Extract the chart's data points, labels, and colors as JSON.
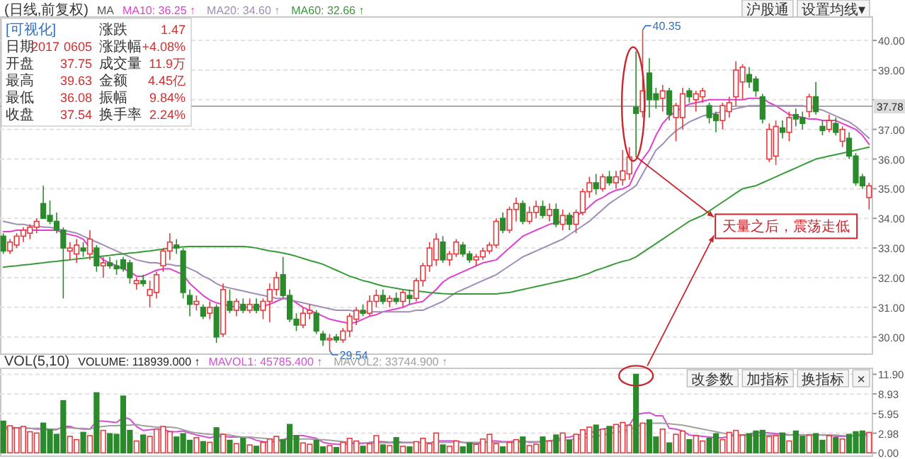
{
  "chart_data": [
    {
      "type": "candlestick",
      "title": "(日线,前复权)",
      "legend_title": "MA",
      "legend": "top",
      "grid": "y",
      "tick_labels": "y",
      "categories": [
        null,
        null,
        null,
        null,
        null,
        null,
        null,
        null,
        null,
        null,
        null,
        null,
        null,
        null,
        null,
        null,
        null,
        null,
        null,
        null,
        null,
        null,
        null,
        null,
        null,
        null,
        null,
        null,
        null,
        null,
        null,
        null,
        null,
        null,
        null,
        null,
        null,
        null,
        null,
        null,
        null,
        null,
        null,
        null,
        null,
        null,
        null,
        null,
        null,
        null,
        null,
        null,
        null,
        null,
        null,
        null,
        null,
        null,
        null,
        null,
        null,
        null,
        null,
        null,
        null,
        null,
        null,
        null,
        null,
        null,
        null,
        null,
        null,
        null,
        null,
        null,
        null,
        null,
        null,
        null,
        null,
        null,
        null,
        null,
        null,
        null,
        null,
        null,
        null,
        null,
        null,
        null,
        null,
        null,
        null,
        null,
        null,
        null,
        null,
        null,
        null,
        null,
        null,
        null,
        null,
        null,
        null,
        null,
        null,
        null,
        null,
        null,
        null,
        null,
        null,
        null,
        null,
        null,
        null,
        null,
        null,
        null,
        null,
        null,
        null,
        null,
        null,
        null,
        null,
        null,
        null
      ],
      "ylim": [
        29.42,
        40.79
      ],
      "yticks": [
        {
          "value": 30,
          "label": "30.00"
        },
        {
          "value": 31,
          "label": "31.00"
        },
        {
          "value": 32,
          "label": "32.00"
        },
        {
          "value": 33,
          "label": "33.00"
        },
        {
          "value": 34,
          "label": "34.00"
        },
        {
          "value": 35,
          "label": "35.00"
        },
        {
          "value": 36,
          "label": "36.00"
        },
        {
          "value": 37,
          "label": "37.00"
        },
        {
          "value": 38,
          "label": null
        },
        {
          "value": 39,
          "label": "39.00"
        },
        {
          "value": 40,
          "label": "40.00"
        }
      ],
      "ref_lines": [
        {
          "axis": "y",
          "value": 37.78,
          "label": "37.78",
          "color": "#8c8c8c"
        }
      ],
      "annotations": [
        "天量之后，震荡走低",
        "40.35",
        "29.54",
        "沪股通",
        "设置均线▾"
      ],
      "ohlc": [
        [
          33.4,
          33.5,
          32.8,
          32.9
        ],
        [
          32.9,
          33.3,
          32.8,
          33.2
        ],
        [
          33.1,
          33.5,
          33.0,
          33.4
        ],
        [
          33.4,
          33.7,
          33.2,
          33.6
        ],
        [
          33.5,
          33.8,
          33.3,
          33.7
        ],
        [
          33.7,
          34.0,
          33.5,
          33.9
        ],
        [
          34.5,
          35.1,
          34.0,
          34.0
        ],
        [
          34.1,
          34.6,
          33.8,
          33.9
        ],
        [
          33.9,
          34.2,
          33.5,
          33.6
        ],
        [
          33.6,
          33.7,
          31.3,
          33.0
        ],
        [
          32.9,
          33.2,
          32.6,
          33.0
        ],
        [
          32.8,
          33.3,
          32.5,
          33.1
        ],
        [
          33.0,
          33.2,
          32.7,
          32.9
        ],
        [
          32.8,
          33.6,
          32.6,
          33.3
        ],
        [
          33.0,
          33.1,
          32.2,
          32.4
        ],
        [
          32.4,
          32.7,
          32.0,
          32.5
        ],
        [
          32.5,
          32.7,
          32.3,
          32.4
        ],
        [
          32.4,
          32.6,
          32.1,
          32.3
        ],
        [
          32.6,
          32.7,
          32.2,
          32.3
        ],
        [
          32.5,
          32.6,
          31.8,
          32.0
        ],
        [
          31.8,
          32.0,
          31.6,
          31.9
        ],
        [
          31.9,
          32.1,
          31.7,
          31.8
        ],
        [
          31.4,
          31.9,
          31.0,
          31.6
        ],
        [
          31.5,
          32.2,
          31.3,
          32.1
        ],
        [
          32.4,
          33.0,
          32.2,
          32.9
        ],
        [
          32.9,
          33.5,
          32.6,
          33.2
        ],
        [
          33.1,
          33.3,
          32.8,
          33.0
        ],
        [
          32.9,
          33.0,
          31.3,
          31.5
        ],
        [
          31.4,
          31.6,
          30.7,
          31.1
        ],
        [
          31.1,
          31.4,
          30.9,
          31.2
        ],
        [
          31.0,
          31.1,
          30.6,
          30.7
        ],
        [
          30.8,
          31.2,
          30.6,
          31.0
        ],
        [
          31.0,
          31.1,
          29.8,
          30.0
        ],
        [
          30.1,
          31.8,
          30.0,
          31.6
        ],
        [
          31.2,
          31.6,
          30.8,
          30.9
        ],
        [
          30.9,
          31.3,
          30.7,
          31.2
        ],
        [
          31.1,
          31.3,
          30.8,
          30.9
        ],
        [
          30.9,
          31.3,
          30.8,
          31.1
        ],
        [
          31.1,
          31.3,
          30.8,
          30.9
        ],
        [
          30.9,
          31.3,
          30.6,
          31.2
        ],
        [
          31.2,
          31.8,
          30.5,
          31.6
        ],
        [
          31.6,
          32.2,
          31.4,
          32.0
        ],
        [
          32.1,
          32.7,
          31.3,
          31.4
        ],
        [
          31.4,
          31.6,
          30.5,
          30.6
        ],
        [
          30.6,
          30.8,
          30.2,
          30.4
        ],
        [
          30.4,
          31.0,
          30.3,
          30.8
        ],
        [
          30.8,
          31.1,
          30.6,
          30.9
        ],
        [
          30.8,
          30.9,
          30.1,
          30.2
        ],
        [
          30.1,
          30.2,
          29.7,
          29.9
        ],
        [
          29.9,
          30.1,
          29.54,
          29.95
        ],
        [
          30.0,
          30.1,
          29.8,
          29.9
        ],
        [
          29.9,
          30.3,
          29.8,
          30.2
        ],
        [
          30.2,
          30.8,
          30.0,
          30.7
        ],
        [
          30.6,
          31.0,
          30.4,
          30.9
        ],
        [
          30.9,
          31.1,
          30.7,
          30.8
        ],
        [
          30.8,
          31.4,
          30.7,
          31.2
        ],
        [
          31.2,
          31.6,
          31.0,
          31.4
        ],
        [
          31.4,
          31.6,
          31.1,
          31.2
        ],
        [
          31.2,
          31.4,
          31.0,
          31.3
        ],
        [
          31.3,
          31.5,
          31.1,
          31.2
        ],
        [
          31.2,
          31.6,
          31.0,
          31.5
        ],
        [
          31.4,
          31.6,
          31.1,
          31.3
        ],
        [
          31.3,
          32.0,
          31.2,
          31.9
        ],
        [
          31.9,
          32.5,
          31.7,
          32.4
        ],
        [
          32.4,
          33.2,
          32.2,
          33.0
        ],
        [
          32.6,
          33.5,
          32.4,
          33.3
        ],
        [
          33.2,
          33.4,
          32.5,
          32.6
        ],
        [
          32.6,
          32.9,
          32.4,
          32.8
        ],
        [
          32.8,
          33.3,
          32.7,
          33.2
        ],
        [
          33.1,
          33.2,
          32.7,
          32.8
        ],
        [
          32.8,
          32.9,
          32.5,
          32.6
        ],
        [
          32.6,
          32.8,
          32.4,
          32.7
        ],
        [
          32.7,
          33.0,
          32.6,
          32.9
        ],
        [
          32.9,
          33.2,
          32.8,
          33.1
        ],
        [
          33.1,
          34.0,
          33.0,
          33.9
        ],
        [
          34.0,
          34.2,
          33.5,
          33.6
        ],
        [
          33.6,
          34.4,
          33.5,
          34.3
        ],
        [
          34.3,
          34.7,
          33.9,
          34.5
        ],
        [
          34.5,
          34.6,
          33.8,
          33.9
        ],
        [
          33.9,
          34.4,
          33.8,
          34.2
        ],
        [
          34.2,
          34.6,
          34.0,
          34.4
        ],
        [
          34.4,
          34.6,
          34.0,
          34.1
        ],
        [
          34.1,
          34.5,
          33.9,
          34.3
        ],
        [
          34.3,
          34.5,
          33.7,
          33.8
        ],
        [
          33.8,
          34.3,
          33.6,
          34.1
        ],
        [
          34.1,
          34.2,
          33.6,
          33.8
        ],
        [
          33.8,
          34.3,
          33.5,
          34.2
        ],
        [
          34.2,
          35.0,
          34.1,
          34.9
        ],
        [
          34.9,
          35.4,
          34.7,
          35.2
        ],
        [
          35.2,
          35.5,
          34.8,
          35.0
        ],
        [
          35.0,
          35.5,
          34.9,
          35.4
        ],
        [
          35.4,
          35.6,
          35.1,
          35.2
        ],
        [
          35.2,
          35.6,
          35.0,
          35.4
        ],
        [
          35.3,
          36.3,
          35.1,
          35.6
        ],
        [
          35.5,
          36.4,
          35.3,
          36.07
        ],
        [
          37.75,
          39.63,
          36.08,
          37.54
        ],
        [
          37.6,
          40.35,
          37.4,
          38.3
        ],
        [
          38.9,
          39.4,
          37.4,
          38.0
        ],
        [
          38.2,
          38.4,
          37.7,
          38.0
        ],
        [
          38.05,
          38.5,
          37.6,
          38.3
        ],
        [
          38.3,
          38.4,
          37.3,
          37.5
        ],
        [
          37.4,
          37.9,
          36.6,
          37.8
        ],
        [
          37.4,
          38.4,
          37.0,
          38.2
        ],
        [
          38.3,
          38.4,
          37.9,
          38.1
        ],
        [
          38.0,
          38.3,
          37.6,
          38.2
        ],
        [
          38.1,
          38.4,
          37.9,
          38.3
        ],
        [
          37.8,
          37.9,
          37.2,
          37.4
        ],
        [
          37.5,
          37.6,
          36.9,
          37.3
        ],
        [
          37.3,
          37.9,
          37.0,
          37.8
        ],
        [
          37.6,
          38.1,
          37.4,
          37.9
        ],
        [
          38.1,
          39.3,
          37.8,
          39.0
        ],
        [
          38.6,
          39.2,
          38.0,
          39.1
        ],
        [
          38.85,
          39.1,
          38.4,
          38.6
        ],
        [
          38.7,
          38.8,
          38.1,
          38.3
        ],
        [
          38.1,
          38.2,
          37.2,
          37.35
        ],
        [
          36.0,
          37.2,
          35.9,
          37.0
        ],
        [
          36.1,
          37.3,
          35.8,
          37.1
        ],
        [
          37.05,
          37.3,
          36.7,
          36.9
        ],
        [
          36.9,
          37.6,
          36.6,
          37.4
        ],
        [
          37.5,
          37.7,
          37.1,
          37.35
        ],
        [
          37.4,
          37.6,
          37.0,
          37.2
        ],
        [
          37.6,
          38.2,
          37.4,
          38.1
        ],
        [
          38.1,
          38.6,
          37.5,
          37.6
        ],
        [
          37.1,
          37.3,
          36.8,
          36.96
        ],
        [
          37.0,
          37.5,
          36.9,
          37.3
        ],
        [
          37.2,
          37.4,
          36.8,
          36.9
        ],
        [
          36.6,
          37.1,
          36.4,
          37.0
        ],
        [
          36.7,
          36.9,
          36.0,
          36.1
        ],
        [
          36.1,
          36.2,
          35.1,
          35.2
        ],
        [
          35.4,
          35.5,
          35.0,
          35.1
        ],
        [
          34.7,
          35.2,
          34.3,
          35.1
        ]
      ],
      "colors": [
        "#2b8a2b",
        "#e8383d",
        "#e8383d",
        "#e8383d",
        "#e8383d",
        "#e8383d",
        "#2b8a2b",
        "#2b8a2b",
        "#2b8a2b",
        "#2b8a2b",
        "#e8383d",
        "#e8383d",
        "#2b8a2b",
        "#e8383d",
        "#2b8a2b",
        "#e8383d",
        "#2b8a2b",
        "#2b8a2b",
        "#2b8a2b",
        "#2b8a2b",
        "#e8383d",
        "#2b8a2b",
        "#e8383d",
        "#e8383d",
        "#e8383d",
        "#e8383d",
        "#2b8a2b",
        "#2b8a2b",
        "#2b8a2b",
        "#e8383d",
        "#2b8a2b",
        "#e8383d",
        "#2b8a2b",
        "#e8383d",
        "#2b8a2b",
        "#e8383d",
        "#2b8a2b",
        "#e8383d",
        "#2b8a2b",
        "#e8383d",
        "#e8383d",
        "#e8383d",
        "#2b8a2b",
        "#2b8a2b",
        "#2b8a2b",
        "#e8383d",
        "#e8383d",
        "#2b8a2b",
        "#2b8a2b",
        "#e8383d",
        "#2b8a2b",
        "#e8383d",
        "#e8383d",
        "#e8383d",
        "#2b8a2b",
        "#e8383d",
        "#e8383d",
        "#2b8a2b",
        "#e8383d",
        "#2b8a2b",
        "#e8383d",
        "#2b8a2b",
        "#e8383d",
        "#e8383d",
        "#e8383d",
        "#e8383d",
        "#2b8a2b",
        "#e8383d",
        "#e8383d",
        "#2b8a2b",
        "#2b8a2b",
        "#e8383d",
        "#e8383d",
        "#e8383d",
        "#e8383d",
        "#2b8a2b",
        "#e8383d",
        "#e8383d",
        "#2b8a2b",
        "#e8383d",
        "#e8383d",
        "#2b8a2b",
        "#e8383d",
        "#2b8a2b",
        "#e8383d",
        "#2b8a2b",
        "#e8383d",
        "#e8383d",
        "#e8383d",
        "#2b8a2b",
        "#e8383d",
        "#2b8a2b",
        "#e8383d",
        "#e8383d",
        "#e8383d",
        "#2b8a2b",
        "#e8383d",
        "#2b8a2b",
        "#2b8a2b",
        "#e8383d",
        "#2b8a2b",
        "#e8383d",
        "#e8383d",
        "#2b8a2b",
        "#e8383d",
        "#e8383d",
        "#2b8a2b",
        "#2b8a2b",
        "#e8383d",
        "#e8383d",
        "#e8383d",
        "#e8383d",
        "#2b8a2b",
        "#2b8a2b",
        "#2b8a2b",
        "#e8383d",
        "#e8383d",
        "#2b8a2b",
        "#e8383d",
        "#2b8a2b",
        "#2b8a2b",
        "#e8383d",
        "#2b8a2b",
        "#2b8a2b",
        "#e8383d",
        "#2b8a2b",
        "#e8383d",
        "#2b8a2b",
        "#2b8a2b",
        "#2b8a2b",
        "#e8383d"
      ],
      "series": [
        {
          "type": "line",
          "name": "MA10: 36.25 ↑",
          "color": "#e040d0",
          "values": [
            33.55,
            33.55,
            33.6,
            33.6,
            33.6,
            33.6,
            33.6,
            33.6,
            33.6,
            33.5,
            33.45,
            33.4,
            33.3,
            33.0,
            32.8,
            32.6,
            32.5,
            32.4,
            32.3,
            32.2,
            32.05,
            32.05,
            32.15,
            32.25,
            32.3,
            32.3,
            32.2,
            32.1,
            31.8,
            31.6,
            31.4,
            31.25,
            31.15,
            31.1,
            31.05,
            31.0,
            31.0,
            31.0,
            31.0,
            31.05,
            31.1,
            31.2,
            31.3,
            31.3,
            31.15,
            31.0,
            30.9,
            30.8,
            30.7,
            30.6,
            30.55,
            30.5,
            30.45,
            30.5,
            30.6,
            30.7,
            30.75,
            30.85,
            30.9,
            30.95,
            31.0,
            31.1,
            31.15,
            31.2,
            31.4,
            31.6,
            31.85,
            32.0,
            32.1,
            32.2,
            32.3,
            32.4,
            32.5,
            32.55,
            32.6,
            32.8,
            33.0,
            33.2,
            33.4,
            33.5,
            33.6,
            33.7,
            33.8,
            33.85,
            33.9,
            34.0,
            34.1,
            34.2,
            34.4,
            34.6,
            34.7,
            34.85,
            34.95,
            35.0,
            35.1,
            35.6,
            36.0,
            36.3,
            36.8,
            37.2,
            37.45,
            37.6,
            37.75,
            37.85,
            37.9,
            37.95,
            38.0,
            38.0,
            38.0,
            38.0,
            38.0,
            38.0,
            38.05,
            38.05,
            38.05,
            37.9,
            37.8,
            37.65,
            37.5,
            37.45,
            37.4,
            37.35,
            37.35,
            37.3,
            37.3,
            37.3,
            37.2,
            37.1,
            37.0,
            36.8,
            36.5
          ]
        },
        {
          "type": "line",
          "name": "MA20: 34.60 ↑",
          "color": "#a08cb4",
          "values": [
            33.9,
            33.85,
            33.8,
            33.8,
            33.75,
            33.75,
            33.7,
            33.7,
            33.65,
            33.6,
            33.55,
            33.5,
            33.4,
            33.3,
            33.2,
            33.1,
            33.0,
            32.9,
            32.8,
            32.7,
            32.6,
            32.55,
            32.5,
            32.5,
            32.45,
            32.45,
            32.4,
            32.4,
            32.3,
            32.2,
            32.05,
            31.95,
            31.8,
            31.7,
            31.65,
            31.6,
            31.55,
            31.5,
            31.45,
            31.4,
            31.35,
            31.3,
            31.3,
            31.25,
            31.2,
            31.15,
            31.1,
            31.05,
            31.0,
            30.95,
            30.9,
            30.9,
            30.9,
            30.85,
            30.85,
            30.85,
            30.85,
            30.85,
            30.85,
            30.85,
            30.85,
            30.85,
            30.9,
            30.9,
            31.0,
            31.1,
            31.2,
            31.35,
            31.5,
            31.6,
            31.7,
            31.8,
            31.9,
            32.0,
            32.1,
            32.25,
            32.4,
            32.55,
            32.7,
            32.8,
            32.9,
            33.0,
            33.1,
            33.2,
            33.3,
            33.45,
            33.6,
            33.75,
            33.9,
            34.1,
            34.3,
            34.5,
            34.65,
            34.8,
            34.95,
            35.1,
            35.5,
            35.9,
            36.3,
            36.5,
            36.75,
            36.95,
            37.1,
            37.25,
            37.35,
            37.45,
            37.5,
            37.55,
            37.6,
            37.65,
            37.7,
            37.75,
            37.8,
            37.8,
            37.8,
            37.8,
            37.8,
            37.8,
            37.8,
            37.8,
            37.8,
            37.75,
            37.7,
            37.65,
            37.55,
            37.45,
            37.35,
            37.25,
            37.1,
            36.9,
            36.7
          ]
        },
        {
          "type": "line",
          "name": "MA60: 32.66 ↑",
          "color": "#3a9a3a",
          "values": [
            32.35,
            32.38,
            32.4,
            32.43,
            32.45,
            32.48,
            32.5,
            32.53,
            32.55,
            32.58,
            32.6,
            32.63,
            32.65,
            32.68,
            32.7,
            32.73,
            32.75,
            32.78,
            32.8,
            32.83,
            32.85,
            32.88,
            32.9,
            32.93,
            32.96,
            33.0,
            33.02,
            33.04,
            33.05,
            33.05,
            33.05,
            33.05,
            33.05,
            33.05,
            33.05,
            33.05,
            33.05,
            33.03,
            33.0,
            32.95,
            32.9,
            32.87,
            32.83,
            32.78,
            32.72,
            32.65,
            32.58,
            32.52,
            32.45,
            32.35,
            32.25,
            32.15,
            32.05,
            31.98,
            31.9,
            31.85,
            31.78,
            31.72,
            31.68,
            31.64,
            31.6,
            31.57,
            31.55,
            31.53,
            31.5,
            31.48,
            31.46,
            31.45,
            31.45,
            31.45,
            31.45,
            31.45,
            31.45,
            31.45,
            31.45,
            31.48,
            31.5,
            31.55,
            31.6,
            31.65,
            31.7,
            31.75,
            31.8,
            31.85,
            31.9,
            31.95,
            32.0,
            32.08,
            32.15,
            32.25,
            32.32,
            32.4,
            32.48,
            32.55,
            32.6,
            32.7,
            32.85,
            33.0,
            33.15,
            33.3,
            33.45,
            33.6,
            33.75,
            33.9,
            34.0,
            34.1,
            34.25,
            34.4,
            34.55,
            34.7,
            34.85,
            35.0,
            35.05,
            35.1,
            35.2,
            35.3,
            35.4,
            35.5,
            35.6,
            35.7,
            35.8,
            35.9,
            36.0,
            36.05,
            36.1,
            36.15,
            36.2,
            36.25,
            36.3,
            36.35,
            36.4
          ]
        }
      ]
    },
    {
      "type": "bar",
      "title": "VOL(5,10)",
      "legend": "top",
      "grid": "y",
      "tick_labels": "y",
      "categories": [
        null,
        null,
        null,
        null,
        null,
        null,
        null,
        null,
        null,
        null,
        null,
        null,
        null,
        null,
        null,
        null,
        null,
        null,
        null,
        null,
        null,
        null,
        null,
        null,
        null,
        null,
        null,
        null,
        null,
        null,
        null,
        null,
        null,
        null,
        null,
        null,
        null,
        null,
        null,
        null,
        null,
        null,
        null,
        null,
        null,
        null,
        null,
        null,
        null,
        null,
        null,
        null,
        null,
        null,
        null,
        null,
        null,
        null,
        null,
        null,
        null,
        null,
        null,
        null,
        null,
        null,
        null,
        null,
        null,
        null,
        null,
        null,
        null,
        null,
        null,
        null,
        null,
        null,
        null,
        null,
        null,
        null,
        null,
        null,
        null,
        null,
        null,
        null,
        null,
        null,
        null,
        null,
        null,
        null,
        null,
        null,
        null,
        null,
        null,
        null,
        null,
        null,
        null,
        null,
        null,
        null,
        null,
        null,
        null,
        null,
        null,
        null,
        null,
        null,
        null,
        null,
        null,
        null,
        null,
        null,
        null,
        null,
        null,
        null,
        null,
        null,
        null,
        null,
        null,
        null,
        null
      ],
      "ylim": [
        -0.5,
        12.8
      ],
      "yticks": [
        {
          "value": 0,
          "label": "0.00"
        },
        {
          "value": 2.975,
          "label": "2.98"
        },
        {
          "value": 5.95,
          "label": "5.95"
        },
        {
          "value": 8.925,
          "label": "8.93"
        },
        {
          "value": 11.9,
          "label": "11.90"
        }
      ],
      "annotations": [
        "VOLUME: 118939.000 ↑",
        "改参数",
        "加指标",
        "换指标",
        "×"
      ],
      "values": [
        4.8,
        4.1,
        3.8,
        4.0,
        3.2,
        3.0,
        4.5,
        3.5,
        2.8,
        7.9,
        2.5,
        2.0,
        3.1,
        2.6,
        9.1,
        3.4,
        2.9,
        2.8,
        8.6,
        3.4,
        1.8,
        2.7,
        2.5,
        3.6,
        4.0,
        3.2,
        2.4,
        2.9,
        1.9,
        2.3,
        1.7,
        1.6,
        3.8,
        2.8,
        1.9,
        1.4,
        2.2,
        1.2,
        1.0,
        1.6,
        2.1,
        2.5,
        2.0,
        4.3,
        2.6,
        1.5,
        1.3,
        1.9,
        0.9,
        1.1,
        0.8,
        1.6,
        2.2,
        1.8,
        1.0,
        1.4,
        2.6,
        1.2,
        1.1,
        2.3,
        1.0,
        0.9,
        1.7,
        2.2,
        1.4,
        3.0,
        1.2,
        1.0,
        1.8,
        0.9,
        1.5,
        1.3,
        2.1,
        2.8,
        1.4,
        0.9,
        1.6,
        2.0,
        2.4,
        1.1,
        1.3,
        2.4,
        1.8,
        2.7,
        3.0,
        1.9,
        2.8,
        3.5,
        3.9,
        4.2,
        3.6,
        4.0,
        4.3,
        4.6,
        4.2,
        11.9,
        4.5,
        5.0,
        2.4,
        3.6,
        1.5,
        2.8,
        3.3,
        2.0,
        2.6,
        1.8,
        2.2,
        2.9,
        2.0,
        3.1,
        3.4,
        2.7,
        2.9,
        3.3,
        3.4,
        2.5,
        2.6,
        3.0,
        1.8,
        3.3,
        2.5,
        2.7,
        2.9,
        1.9,
        2.6,
        2.3,
        2.1,
        2.8,
        3.2,
        3.3,
        3.1
      ],
      "colors": [
        "#2b8a2b",
        "#e8383d",
        "#e8383d",
        "#e8383d",
        "#e8383d",
        "#e8383d",
        "#2b8a2b",
        "#2b8a2b",
        "#2b8a2b",
        "#2b8a2b",
        "#e8383d",
        "#e8383d",
        "#2b8a2b",
        "#e8383d",
        "#2b8a2b",
        "#e8383d",
        "#2b8a2b",
        "#2b8a2b",
        "#2b8a2b",
        "#2b8a2b",
        "#e8383d",
        "#2b8a2b",
        "#e8383d",
        "#e8383d",
        "#e8383d",
        "#e8383d",
        "#2b8a2b",
        "#2b8a2b",
        "#2b8a2b",
        "#e8383d",
        "#2b8a2b",
        "#e8383d",
        "#2b8a2b",
        "#e8383d",
        "#2b8a2b",
        "#e8383d",
        "#2b8a2b",
        "#e8383d",
        "#2b8a2b",
        "#e8383d",
        "#e8383d",
        "#e8383d",
        "#2b8a2b",
        "#2b8a2b",
        "#2b8a2b",
        "#e8383d",
        "#e8383d",
        "#2b8a2b",
        "#2b8a2b",
        "#e8383d",
        "#2b8a2b",
        "#e8383d",
        "#e8383d",
        "#e8383d",
        "#2b8a2b",
        "#e8383d",
        "#e8383d",
        "#2b8a2b",
        "#e8383d",
        "#2b8a2b",
        "#e8383d",
        "#2b8a2b",
        "#e8383d",
        "#e8383d",
        "#e8383d",
        "#e8383d",
        "#2b8a2b",
        "#e8383d",
        "#e8383d",
        "#2b8a2b",
        "#2b8a2b",
        "#e8383d",
        "#e8383d",
        "#e8383d",
        "#e8383d",
        "#2b8a2b",
        "#e8383d",
        "#e8383d",
        "#2b8a2b",
        "#e8383d",
        "#e8383d",
        "#2b8a2b",
        "#e8383d",
        "#2b8a2b",
        "#e8383d",
        "#2b8a2b",
        "#e8383d",
        "#e8383d",
        "#e8383d",
        "#2b8a2b",
        "#e8383d",
        "#2b8a2b",
        "#e8383d",
        "#e8383d",
        "#e8383d",
        "#2b8a2b",
        "#e8383d",
        "#2b8a2b",
        "#2b8a2b",
        "#e8383d",
        "#2b8a2b",
        "#e8383d",
        "#e8383d",
        "#2b8a2b",
        "#e8383d",
        "#e8383d",
        "#2b8a2b",
        "#2b8a2b",
        "#e8383d",
        "#e8383d",
        "#e8383d",
        "#e8383d",
        "#2b8a2b",
        "#2b8a2b",
        "#2b8a2b",
        "#e8383d",
        "#e8383d",
        "#2b8a2b",
        "#e8383d",
        "#2b8a2b",
        "#2b8a2b",
        "#e8383d",
        "#2b8a2b",
        "#2b8a2b",
        "#e8383d",
        "#2b8a2b",
        "#e8383d",
        "#2b8a2b",
        "#2b8a2b",
        "#2b8a2b",
        "#e8383d"
      ],
      "series": [
        {
          "type": "line",
          "name": "MAVOL1: 45785.400 ↑",
          "color": "#d050d0",
          "values": [
            3.9,
            3.9,
            3.8,
            3.8,
            3.7,
            3.6,
            3.6,
            3.5,
            3.5,
            4.0,
            4.0,
            3.7,
            3.6,
            3.6,
            4.8,
            4.8,
            4.7,
            4.6,
            5.4,
            5.1,
            4.0,
            3.4,
            3.5,
            3.6,
            3.6,
            3.2,
            3.2,
            3.3,
            3.0,
            2.7,
            2.5,
            2.3,
            2.5,
            2.5,
            2.4,
            2.4,
            2.4,
            2.3,
            1.9,
            1.7,
            1.6,
            1.8,
            1.9,
            2.5,
            2.6,
            2.6,
            2.4,
            2.2,
            1.6,
            1.4,
            1.3,
            1.3,
            1.4,
            1.4,
            1.4,
            1.6,
            1.7,
            1.7,
            1.6,
            1.7,
            1.6,
            1.6,
            1.6,
            1.6,
            1.5,
            1.8,
            1.8,
            1.8,
            1.8,
            1.6,
            1.4,
            1.4,
            1.5,
            1.8,
            1.8,
            1.7,
            1.7,
            1.8,
            1.8,
            1.6,
            1.6,
            1.8,
            1.8,
            2.0,
            2.3,
            2.4,
            2.6,
            2.8,
            3.0,
            3.3,
            3.6,
            3.8,
            3.9,
            4.1,
            4.2,
            5.8,
            6.0,
            6.1,
            5.6,
            5.6,
            3.7,
            3.6,
            3.3,
            2.7,
            2.6,
            2.5,
            2.4,
            2.3,
            2.3,
            2.5,
            2.7,
            2.7,
            2.8,
            3.1,
            3.1,
            3.0,
            2.9,
            2.9,
            2.7,
            2.8,
            2.7,
            2.7,
            2.8,
            2.7,
            2.7,
            2.5,
            2.5,
            2.5,
            2.6,
            2.8,
            3.0
          ]
        },
        {
          "type": "line",
          "name": "MAVOL2: 33744.900 ↑",
          "color": "#a0a0a0",
          "values": [
            3.6,
            3.6,
            3.7,
            3.7,
            3.7,
            3.7,
            3.7,
            3.6,
            3.6,
            3.8,
            3.8,
            3.7,
            3.7,
            3.6,
            3.9,
            4.0,
            4.1,
            4.1,
            4.2,
            4.2,
            4.3,
            4.1,
            4.0,
            3.9,
            3.9,
            3.9,
            3.8,
            3.5,
            3.2,
            3.0,
            2.9,
            2.8,
            2.8,
            2.8,
            2.7,
            2.5,
            2.4,
            2.4,
            2.3,
            2.2,
            2.1,
            2.0,
            2.0,
            2.1,
            2.1,
            2.1,
            2.1,
            2.0,
            2.0,
            1.9,
            1.8,
            1.7,
            1.6,
            1.5,
            1.5,
            1.5,
            1.5,
            1.5,
            1.5,
            1.5,
            1.5,
            1.5,
            1.5,
            1.5,
            1.5,
            1.6,
            1.6,
            1.6,
            1.6,
            1.6,
            1.6,
            1.6,
            1.6,
            1.6,
            1.6,
            1.6,
            1.6,
            1.6,
            1.7,
            1.7,
            1.7,
            1.7,
            1.8,
            1.8,
            1.9,
            2.0,
            2.1,
            2.2,
            2.4,
            2.5,
            2.7,
            2.9,
            3.1,
            3.3,
            3.5,
            4.0,
            4.3,
            4.5,
            4.5,
            4.5,
            4.4,
            4.3,
            4.2,
            4.0,
            3.8,
            3.6,
            3.4,
            3.2,
            3.0,
            2.8,
            2.7,
            2.6,
            2.6,
            2.6,
            2.6,
            2.7,
            2.7,
            2.7,
            2.7,
            2.7,
            2.7,
            2.7,
            2.7,
            2.7,
            2.7,
            2.7,
            2.6,
            2.6,
            2.6,
            2.6,
            2.7
          ]
        }
      ]
    },
    {
      "type": "other",
      "annotations": [
        "[可视化]",
        "日期",
        "2017",
        "0605",
        "开盘",
        "37.75",
        "最高",
        "39.63",
        "最低",
        "36.08",
        "收盘",
        "37.54",
        "涨跌",
        "1.47",
        "涨跌幅",
        "+4.08%",
        "成交量",
        "11.9万",
        "金额",
        "4.45亿",
        "振幅",
        "9.84%",
        "换手率",
        "2.24%"
      ]
    }
  ]
}
